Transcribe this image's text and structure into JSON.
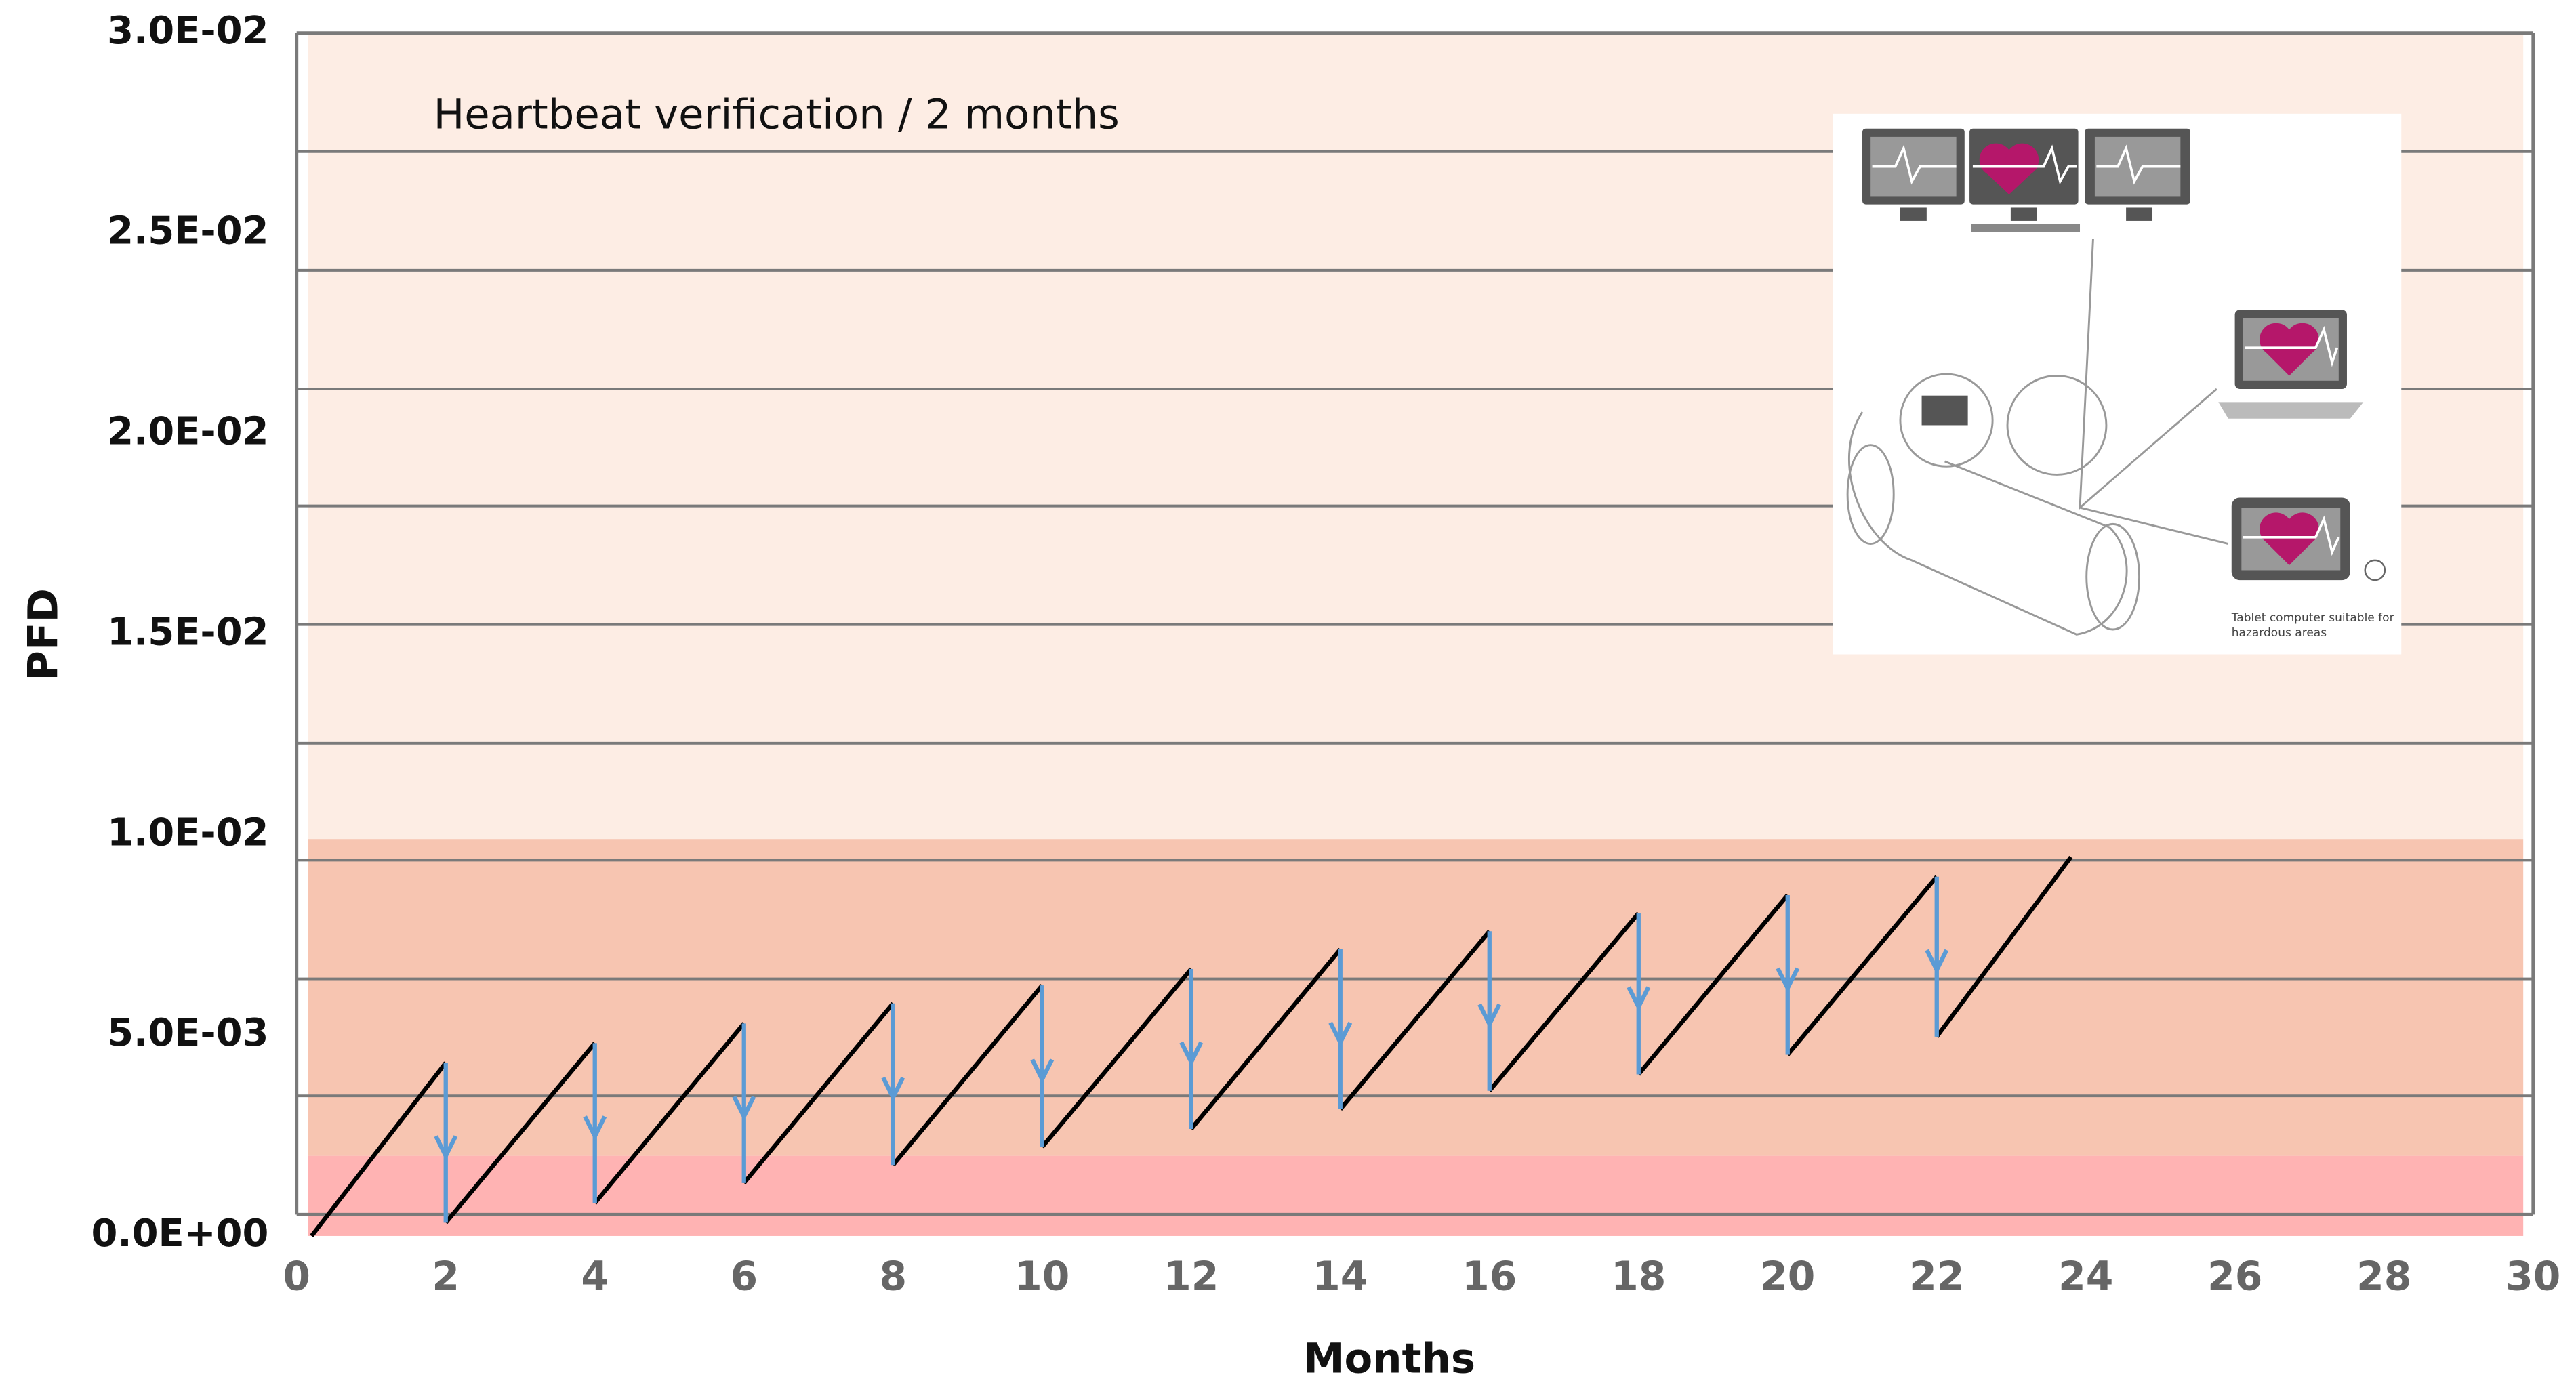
{
  "chart_data": {
    "type": "sawtooth",
    "title": "Heartbeat verification / 2 months",
    "x_label": "Months",
    "y_label": "PFD",
    "xlim": [
      0,
      30
    ],
    "xticks": [
      0,
      2,
      4,
      6,
      8,
      10,
      12,
      14,
      16,
      18,
      20,
      22,
      24,
      26,
      28,
      30
    ],
    "ylim": [
      0,
      0.03
    ],
    "yticks": [
      {
        "value": 0,
        "label": "0.0E+00"
      },
      {
        "value": 0.005,
        "label": "5.0E-03"
      },
      {
        "value": 0.01,
        "label": "1.0E-02"
      },
      {
        "value": 0.015,
        "label": "1.5E-02"
      },
      {
        "value": 0.02,
        "label": "2.0E-02"
      },
      {
        "value": 0.025,
        "label": "2.5E-02"
      },
      {
        "value": 0.03,
        "label": "3.0E-02"
      }
    ],
    "bands": [
      {
        "from": 0,
        "to": 0.002,
        "color": "#ffb3b3"
      },
      {
        "from": 0.002,
        "to": 0.0099,
        "color": "#f7c5b1"
      },
      {
        "from": 0.0099,
        "to": 0.03,
        "color": "#fdede4"
      }
    ],
    "ramp_color": "#000000",
    "arrow_color": "#5b9bd5",
    "x": [
      0.2,
      2,
      4,
      6,
      8,
      10,
      12,
      14,
      16,
      18,
      20,
      22,
      23.8
    ],
    "lows": [
      0,
      0.00033,
      0.00082,
      0.00132,
      0.00177,
      0.00222,
      0.00267,
      0.00316,
      0.00362,
      0.00403,
      0.00452,
      0.00497
    ],
    "highs": [
      0.00432,
      0.00481,
      0.0053,
      0.0058,
      0.00625,
      0.00666,
      0.00715,
      0.0076,
      0.00805,
      0.0085,
      0.00896,
      0.00945
    ],
    "inset_caption": [
      "Tablet computer suitable for",
      "hazardous areas"
    ]
  }
}
